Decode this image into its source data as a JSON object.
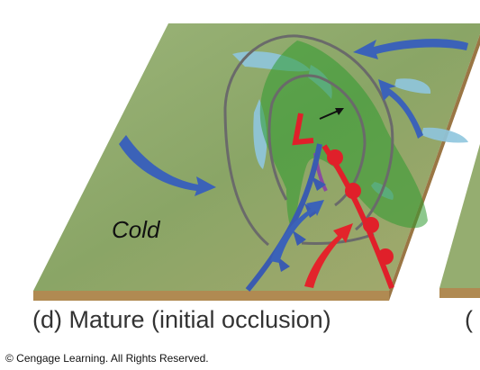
{
  "diagram": {
    "air_mass_label": "Cold",
    "caption": "(d) Mature (initial occlusion)",
    "next_panel_caption_fragment": "(",
    "copyright": "© Cengage Learning. All Rights Reserved.",
    "colors": {
      "cold_front": "#3a5bb0",
      "warm_front": "#e0202a",
      "precipitation": "#2f9a2f",
      "isobar": "#6a6a6a",
      "cold_air_flow": "#3b62b8",
      "warm_air_flow": "#e3242b",
      "land": "#8fa86a",
      "water": "#8fc6de",
      "ground_edge": "#b08a52"
    },
    "symbols": [
      "low-pressure-L",
      "cold-front",
      "warm-front",
      "occluded-front",
      "isobars",
      "air-flow-arrows",
      "precipitation-area"
    ]
  }
}
